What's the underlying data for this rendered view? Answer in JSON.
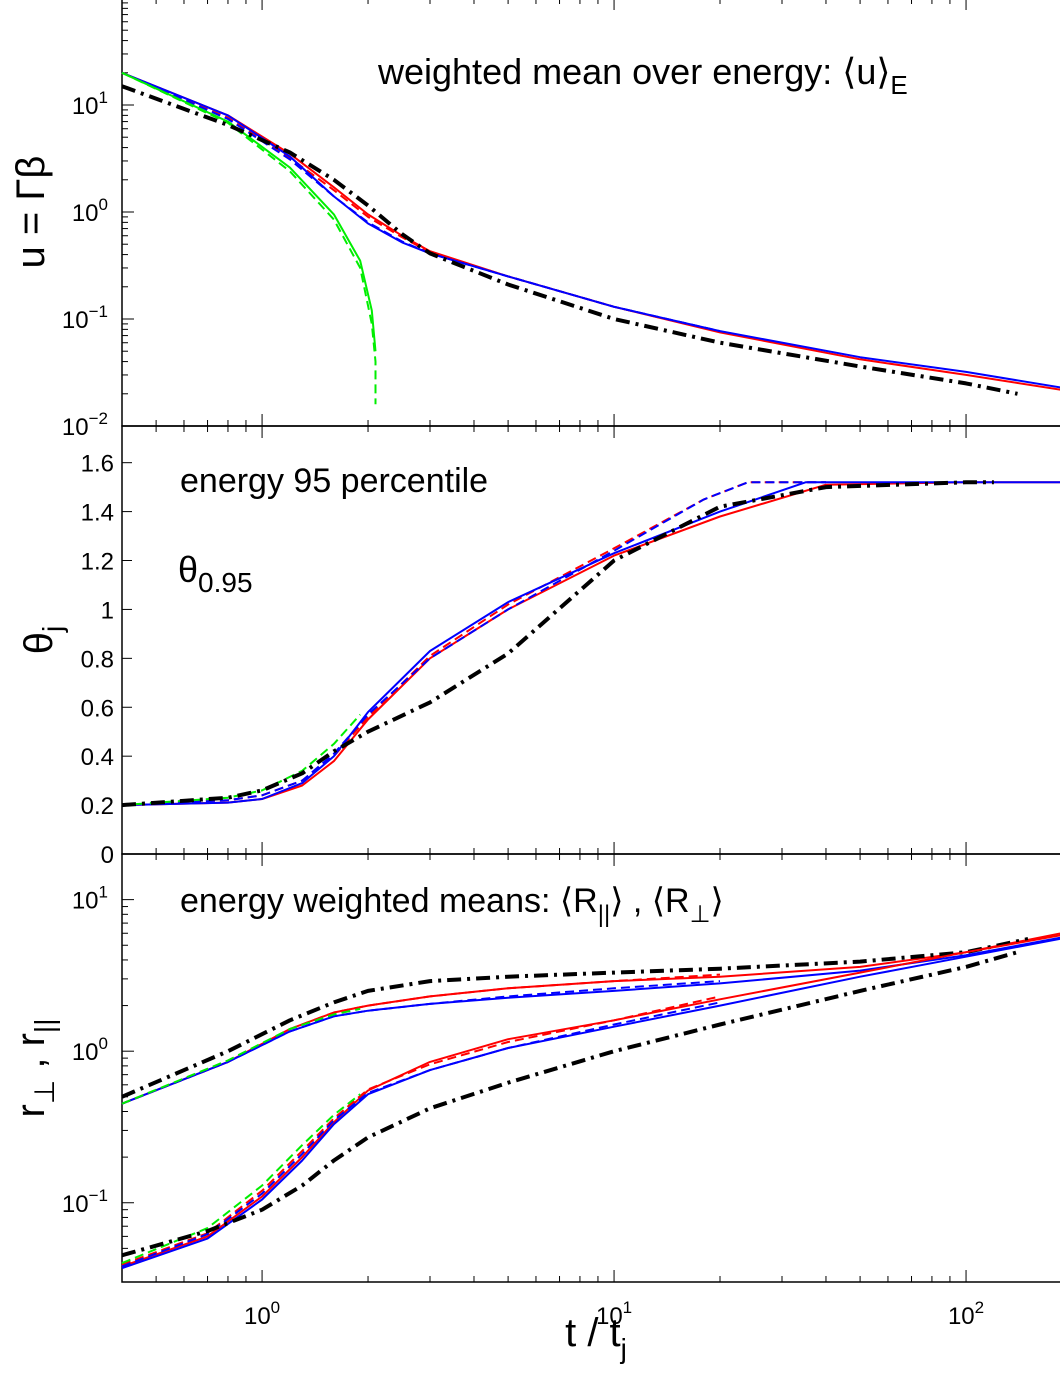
{
  "chart_data": [
    {
      "type": "line",
      "annotation": "weighted mean over energy: ⟨u⟩",
      "annotation_sub": "E",
      "ylabel_main": "u = Γβ",
      "xscale": "log",
      "yscale": "log",
      "xlim": [
        0.4,
        200
      ],
      "ylim": [
        0.01,
        100
      ],
      "yticks": [
        {
          "base": "10",
          "exp": "1"
        },
        {
          "base": "10",
          "exp": "0"
        },
        {
          "base": "10",
          "exp": "−1"
        },
        {
          "base": "10",
          "exp": "−2"
        }
      ],
      "ytick_values": [
        10,
        1,
        0.1,
        0.01
      ],
      "series": [
        {
          "color": "#ff0000",
          "dash": "solid",
          "x": [
            0.4,
            0.8,
            1.2,
            1.6,
            2.0,
            2.5,
            3,
            5,
            10,
            20,
            50,
            100,
            200
          ],
          "y": [
            20,
            8,
            3.5,
            1.7,
            0.95,
            0.6,
            0.43,
            0.25,
            0.13,
            0.075,
            0.042,
            0.03,
            0.021
          ]
        },
        {
          "color": "#ff0000",
          "dash": "dashed",
          "x": [
            0.4,
            0.8,
            1.2,
            1.6,
            2.0,
            2.5,
            3,
            5,
            10,
            20
          ],
          "y": [
            20,
            7.6,
            3.2,
            1.6,
            0.9,
            0.58,
            0.42,
            0.25,
            0.13,
            0.076
          ]
        },
        {
          "color": "#0000ff",
          "dash": "solid",
          "x": [
            0.4,
            0.8,
            1.2,
            1.6,
            2.0,
            2.5,
            3,
            5,
            10,
            20,
            50,
            100,
            200
          ],
          "y": [
            20,
            8,
            3.3,
            1.4,
            0.78,
            0.52,
            0.41,
            0.25,
            0.13,
            0.077,
            0.044,
            0.032,
            0.022
          ]
        },
        {
          "color": "#0000ff",
          "dash": "dashed",
          "x": [
            0.4,
            0.8,
            1.2,
            1.6,
            2.0,
            2.5,
            3,
            5,
            10,
            20
          ],
          "y": [
            20,
            7.4,
            3.1,
            1.4,
            0.8,
            0.53,
            0.41,
            0.25,
            0.13,
            0.077
          ]
        },
        {
          "color": "#00ee00",
          "dash": "solid",
          "x": [
            0.4,
            0.8,
            1.2,
            1.6,
            1.9,
            2.05,
            2.1
          ],
          "y": [
            20,
            7,
            2.6,
            0.95,
            0.35,
            0.12,
            0.05
          ]
        },
        {
          "color": "#00ee00",
          "dash": "dashed",
          "x": [
            0.4,
            0.8,
            1.2,
            1.6,
            1.9,
            2.05,
            2.1,
            2.1
          ],
          "y": [
            20,
            6.8,
            2.4,
            0.85,
            0.3,
            0.09,
            0.04,
            0.016
          ]
        },
        {
          "color": "#000000",
          "dash": "dashdot",
          "x": [
            0.4,
            0.8,
            1.2,
            1.6,
            2.0,
            2.5,
            3,
            5,
            10,
            20,
            50,
            100,
            140
          ],
          "y": [
            15,
            6.5,
            3.6,
            2.0,
            1.15,
            0.62,
            0.41,
            0.21,
            0.1,
            0.06,
            0.036,
            0.025,
            0.02
          ]
        }
      ]
    },
    {
      "type": "line",
      "annotation": "energy 95 percentile",
      "annotation2_main": "θ",
      "annotation2_sub": "0.95",
      "ylabel_main": "θ",
      "ylabel_sub": "j",
      "xscale": "log",
      "yscale": "linear",
      "xlim": [
        0.4,
        200
      ],
      "ylim": [
        0,
        1.75
      ],
      "yticks": [
        "0",
        "0.2",
        "0.4",
        "0.6",
        "0.8",
        "1",
        "1.2",
        "1.4",
        "1.6"
      ],
      "ytick_values": [
        0,
        0.2,
        0.4,
        0.6,
        0.8,
        1,
        1.2,
        1.4,
        1.6
      ],
      "series": [
        {
          "color": "#ff0000",
          "dash": "solid",
          "x": [
            0.4,
            0.8,
            1.0,
            1.3,
            1.6,
            2.0,
            3,
            5,
            10,
            20,
            40,
            100,
            200
          ],
          "y": [
            0.2,
            0.21,
            0.225,
            0.28,
            0.38,
            0.55,
            0.8,
            1.0,
            1.22,
            1.38,
            1.51,
            1.52,
            1.52
          ]
        },
        {
          "color": "#ff0000",
          "dash": "dashed",
          "x": [
            0.4,
            0.8,
            1.0,
            1.3,
            1.6,
            2.0,
            3,
            5,
            10,
            18,
            24,
            40
          ],
          "y": [
            0.2,
            0.22,
            0.24,
            0.3,
            0.4,
            0.56,
            0.81,
            1.02,
            1.25,
            1.45,
            1.52,
            1.52
          ]
        },
        {
          "color": "#0000ff",
          "dash": "solid",
          "x": [
            0.4,
            0.8,
            1.0,
            1.3,
            1.6,
            2.0,
            3,
            5,
            10,
            20,
            35,
            100,
            200
          ],
          "y": [
            0.2,
            0.21,
            0.225,
            0.29,
            0.4,
            0.58,
            0.83,
            1.03,
            1.23,
            1.4,
            1.52,
            1.52,
            1.52
          ]
        },
        {
          "color": "#0000ff",
          "dash": "dashed",
          "x": [
            0.4,
            0.8,
            1.0,
            1.3,
            1.6,
            2.0,
            3,
            5,
            10,
            18,
            24,
            40
          ],
          "y": [
            0.2,
            0.22,
            0.24,
            0.3,
            0.41,
            0.57,
            0.8,
            1.0,
            1.24,
            1.45,
            1.52,
            1.52
          ]
        },
        {
          "color": "#00ee00",
          "dash": "dashed",
          "x": [
            0.4,
            0.8,
            1.0,
            1.3,
            1.6,
            1.9
          ],
          "y": [
            0.2,
            0.23,
            0.26,
            0.34,
            0.45,
            0.57
          ]
        },
        {
          "color": "#000000",
          "dash": "dashdot",
          "x": [
            0.4,
            0.8,
            1.0,
            1.3,
            1.6,
            2.0,
            3,
            5,
            10,
            20,
            40,
            100,
            120
          ],
          "y": [
            0.2,
            0.23,
            0.26,
            0.33,
            0.42,
            0.5,
            0.62,
            0.82,
            1.2,
            1.42,
            1.5,
            1.52,
            1.52
          ]
        }
      ]
    },
    {
      "type": "line",
      "annotation_pre": "energy weighted means: ⟨R",
      "annotation_sub1": "||",
      "annotation_mid": "⟩ , ⟨R",
      "annotation_sub2": "⊥",
      "annotation_post": "⟩",
      "ylabel_r1": "r",
      "ylabel_sub1": "⊥",
      "ylabel_comma": " ,  r",
      "ylabel_sub2": "||",
      "xlabel_main": "t / t",
      "xlabel_sub": "j",
      "xscale": "log",
      "yscale": "log",
      "xlim": [
        0.4,
        200
      ],
      "ylim": [
        0.03,
        20
      ],
      "yticks": [
        {
          "base": "10",
          "exp": "1"
        },
        {
          "base": "10",
          "exp": "0"
        },
        {
          "base": "10",
          "exp": "−1"
        }
      ],
      "ytick_values": [
        10,
        1,
        0.1
      ],
      "xticks": [
        {
          "base": "10",
          "exp": "0"
        },
        {
          "base": "10",
          "exp": "1"
        },
        {
          "base": "10",
          "exp": "2"
        }
      ],
      "xtick_values": [
        1,
        10,
        100
      ],
      "series": [
        {
          "color": "#ff0000",
          "dash": "solid",
          "x": [
            0.4,
            0.8,
            1.2,
            1.6,
            2,
            3,
            5,
            10,
            20,
            50,
            100,
            200
          ],
          "y": [
            0.45,
            0.85,
            1.4,
            1.8,
            2.0,
            2.3,
            2.6,
            2.9,
            3.1,
            3.6,
            4.5,
            6.2
          ]
        },
        {
          "color": "#ff0000",
          "dash": "dashed",
          "x": [
            0.4,
            0.8,
            1.2,
            1.6,
            2,
            3,
            5,
            10,
            20
          ],
          "y": [
            0.45,
            0.85,
            1.4,
            1.8,
            2.0,
            2.3,
            2.6,
            2.9,
            3.2
          ]
        },
        {
          "color": "#0000ff",
          "dash": "solid",
          "x": [
            0.4,
            0.8,
            1.2,
            1.6,
            2,
            3,
            5,
            10,
            20,
            50,
            100,
            200
          ],
          "y": [
            0.45,
            0.85,
            1.35,
            1.7,
            1.85,
            2.05,
            2.25,
            2.5,
            2.8,
            3.4,
            4.3,
            5.8
          ]
        },
        {
          "color": "#0000ff",
          "dash": "dashed",
          "x": [
            0.4,
            0.8,
            1.2,
            1.6,
            2,
            3,
            5,
            10,
            20
          ],
          "y": [
            0.45,
            0.85,
            1.35,
            1.7,
            1.85,
            2.05,
            2.3,
            2.6,
            2.9
          ]
        },
        {
          "color": "#00ee00",
          "dash": "dashed",
          "x": [
            0.4,
            0.8,
            1.2,
            1.6,
            1.9
          ],
          "y": [
            0.45,
            0.87,
            1.4,
            1.75,
            1.9
          ]
        },
        {
          "color": "#000000",
          "dash": "dashdot",
          "x": [
            0.4,
            0.8,
            1.2,
            1.6,
            2,
            3,
            5,
            10,
            20,
            50,
            100,
            150
          ],
          "y": [
            0.5,
            1.0,
            1.6,
            2.1,
            2.5,
            2.9,
            3.1,
            3.3,
            3.5,
            3.9,
            4.5,
            5.5
          ]
        },
        {
          "color": "#ff0000",
          "dash": "solid",
          "x": [
            0.4,
            0.7,
            1.0,
            1.3,
            1.6,
            2,
            3,
            5,
            10,
            20,
            50,
            100,
            200
          ],
          "y": [
            0.038,
            0.06,
            0.11,
            0.2,
            0.34,
            0.55,
            0.85,
            1.2,
            1.6,
            2.2,
            3.3,
            4.5,
            6.0
          ]
        },
        {
          "color": "#ff0000",
          "dash": "dashed",
          "x": [
            0.4,
            0.7,
            1.0,
            1.3,
            1.6,
            2,
            3,
            5,
            10,
            20
          ],
          "y": [
            0.039,
            0.063,
            0.12,
            0.22,
            0.36,
            0.56,
            0.82,
            1.15,
            1.6,
            2.3
          ]
        },
        {
          "color": "#0000ff",
          "dash": "solid",
          "x": [
            0.4,
            0.7,
            1.0,
            1.3,
            1.6,
            2,
            3,
            5,
            10,
            20,
            50,
            100,
            200
          ],
          "y": [
            0.037,
            0.058,
            0.105,
            0.19,
            0.33,
            0.52,
            0.75,
            1.05,
            1.45,
            2.0,
            3.1,
            4.2,
            5.7
          ]
        },
        {
          "color": "#0000ff",
          "dash": "dashed",
          "x": [
            0.4,
            0.7,
            1.0,
            1.3,
            1.6,
            2,
            3,
            5,
            10,
            20
          ],
          "y": [
            0.038,
            0.062,
            0.115,
            0.21,
            0.35,
            0.53,
            0.75,
            1.05,
            1.5,
            2.1
          ]
        },
        {
          "color": "#00ee00",
          "dash": "dashed",
          "x": [
            0.4,
            0.7,
            1.0,
            1.3,
            1.6,
            1.9
          ],
          "y": [
            0.04,
            0.068,
            0.13,
            0.24,
            0.38,
            0.52
          ]
        },
        {
          "color": "#000000",
          "dash": "dashdot",
          "x": [
            0.4,
            0.7,
            1.0,
            1.3,
            1.6,
            2,
            3,
            5,
            10,
            20,
            50,
            100,
            140
          ],
          "y": [
            0.045,
            0.065,
            0.09,
            0.13,
            0.19,
            0.27,
            0.42,
            0.62,
            1.0,
            1.5,
            2.5,
            3.6,
            4.5
          ]
        }
      ]
    }
  ]
}
